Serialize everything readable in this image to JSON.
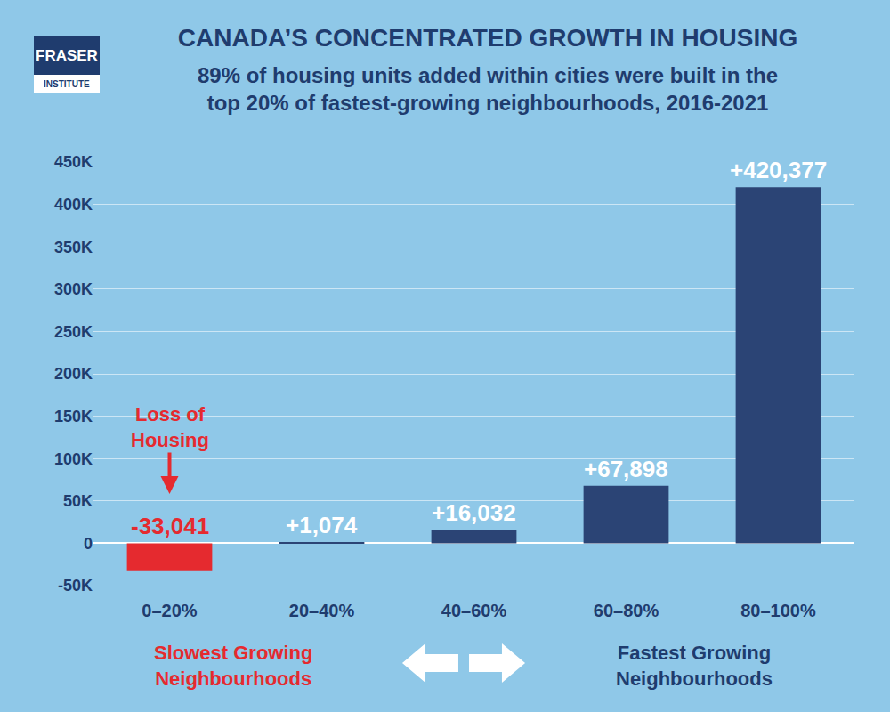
{
  "chart_data": {
    "type": "bar",
    "logo": [
      "FRASER",
      "INSTITUTE"
    ],
    "title": "CANADA’S CONCENTRATED GROWTH IN HOUSING",
    "subtitle": "89% of housing units added within cities were built in the\ntop 20% of fastest-growing neighbourhoods, 2016-2021",
    "categories": [
      "0–20%",
      "20–40%",
      "40–60%",
      "60–80%",
      "80–100%"
    ],
    "values": [
      -33041,
      1074,
      16032,
      67898,
      420377
    ],
    "value_labels": [
      "-33,041",
      "+1,074",
      "+16,032",
      "+67,898",
      "+420,377"
    ],
    "colors": [
      "#e52a2f",
      "#2b4475",
      "#2b4475",
      "#2b4475",
      "#2b4475"
    ],
    "ylim": [
      -50000,
      450000
    ],
    "yticks": [
      {
        "value": -50000,
        "label": "-50K"
      },
      0,
      {
        "value": 50000,
        "label": "50K"
      },
      {
        "value": 100000,
        "label": "100K"
      },
      {
        "value": 150000,
        "label": "150K"
      },
      {
        "value": 200000,
        "label": "200K"
      },
      {
        "value": 250000,
        "label": "250K"
      },
      {
        "value": 300000,
        "label": "300K"
      },
      {
        "value": 350000,
        "label": "350K"
      },
      {
        "value": 400000,
        "label": "400K"
      },
      {
        "value": 450000,
        "label": "450K"
      }
    ],
    "grid": true,
    "data_labels": true,
    "annotations": [
      {
        "text": "Loss of\nHousing",
        "category": "0–20%",
        "color": "#e52a2f"
      },
      {
        "text": "Slowest Growing\nNeighbourhoods",
        "color": "#e52a2f"
      },
      {
        "text": "Fastest Growing\nNeighbourhoods",
        "color": "#1f3c6e"
      }
    ]
  }
}
